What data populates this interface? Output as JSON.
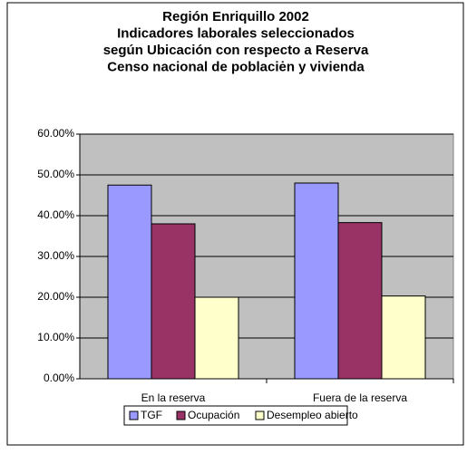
{
  "chart_data": {
    "type": "bar",
    "title": [
      "Región Enriquillo 2002",
      "Indicadores laborales seleccionados",
      "según Ubicación con respecto a Reserva",
      "Censo nacional de poblaciėn y vivienda"
    ],
    "categories": [
      "En la reserva",
      "Fuera de la reserva"
    ],
    "series": [
      {
        "name": "TGF",
        "color": "#9999ff",
        "values": [
          47.5,
          48
        ]
      },
      {
        "name": "Ocupación",
        "color": "#993366",
        "values": [
          38,
          38.3
        ]
      },
      {
        "name": "Desempleo abierto",
        "color": "#ffffcc",
        "values": [
          20,
          20.3
        ]
      }
    ],
    "ylim": [
      0,
      60
    ],
    "yticks": [
      {
        "value": 0,
        "label": "0.00%"
      },
      {
        "value": 10,
        "label": "10.00%"
      },
      {
        "value": 20,
        "label": "20.00%"
      },
      {
        "value": 30,
        "label": "30.00%"
      },
      {
        "value": 40,
        "label": "40.00%"
      },
      {
        "value": 50,
        "label": "50.00%"
      },
      {
        "value": 60,
        "label": "60.00%"
      }
    ],
    "grid": true,
    "legend": "bottom",
    "plot_background": "#c0c0c0"
  }
}
